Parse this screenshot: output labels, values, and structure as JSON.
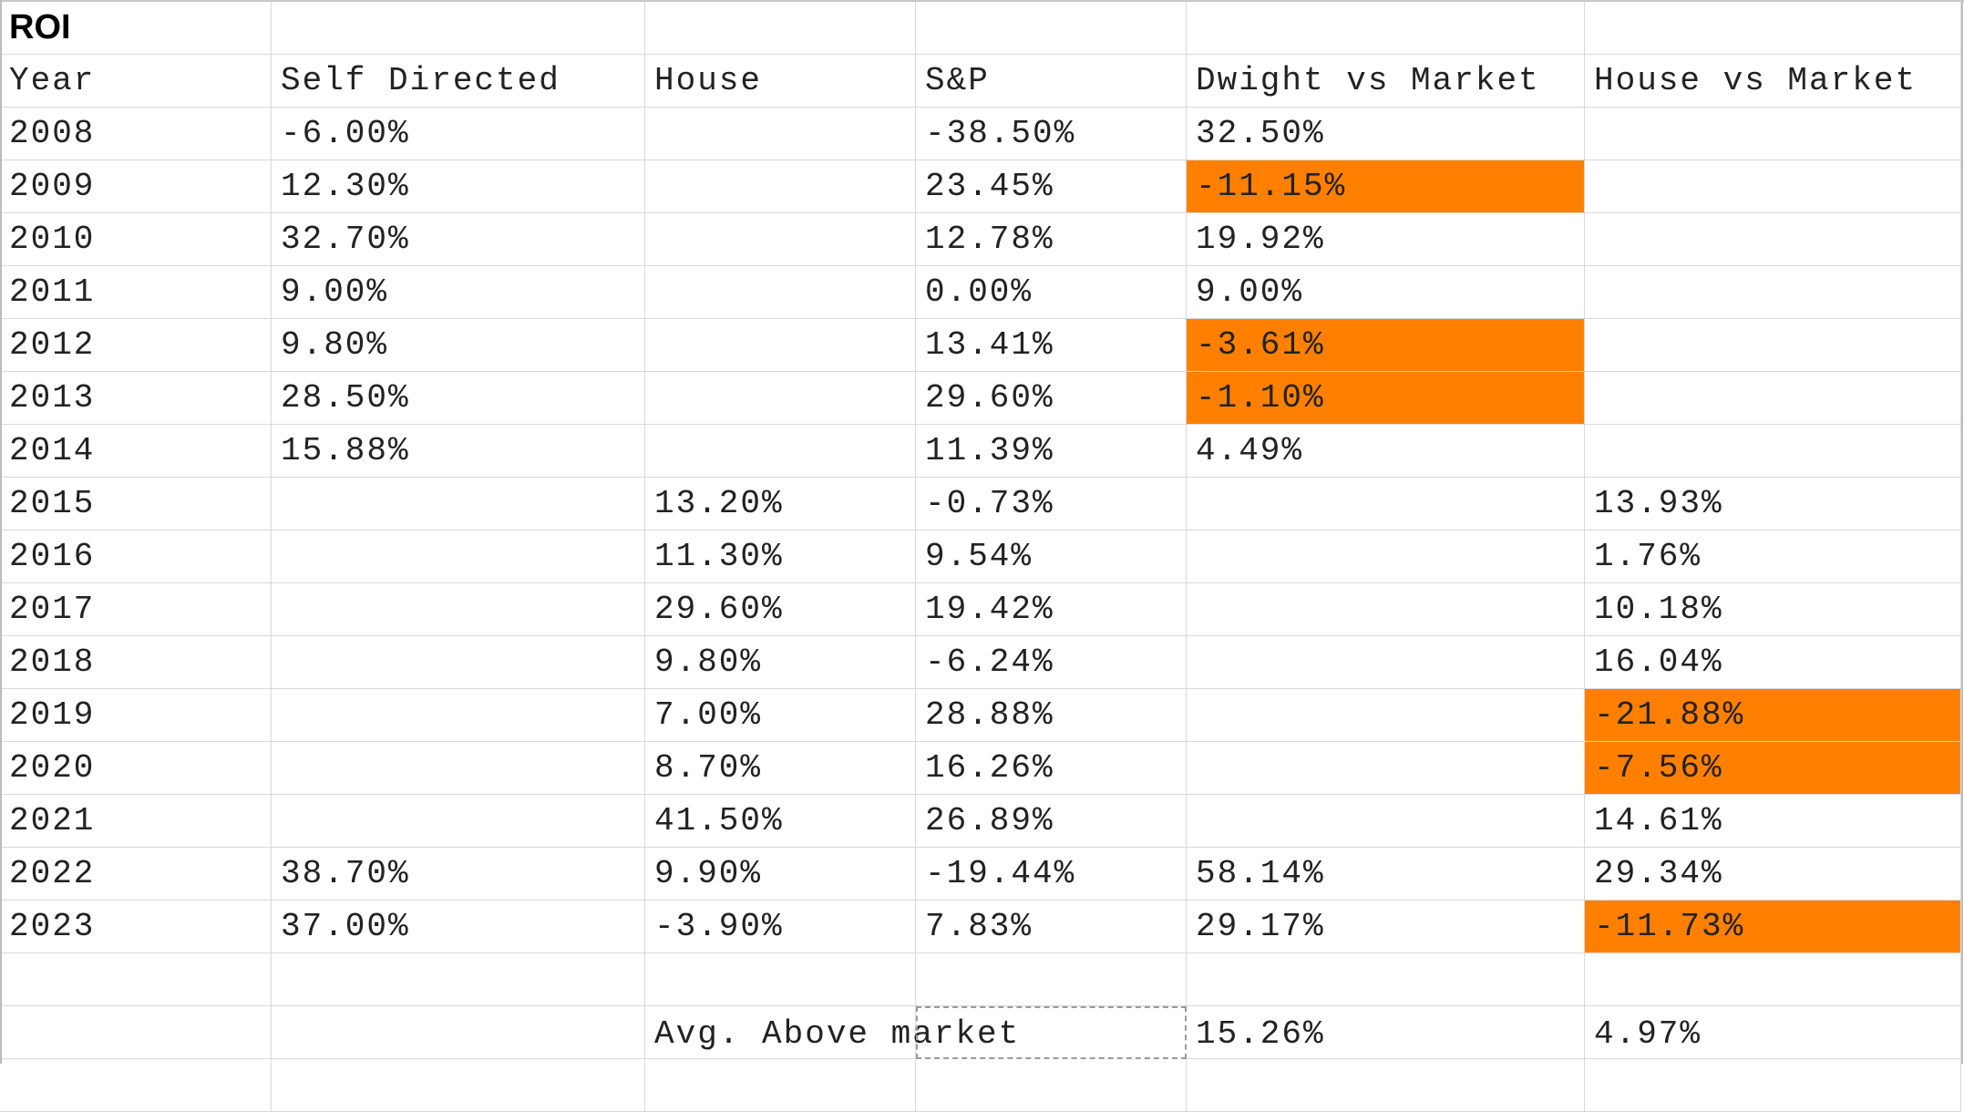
{
  "sheet": {
    "title": "ROI",
    "highlight_color": "#ff8000",
    "headers": [
      "Year",
      "Self Directed",
      "House",
      "S&P",
      "Dwight vs Market",
      "House vs Market"
    ],
    "rows": [
      [
        "2008",
        "-6.00%",
        "",
        "-38.50%",
        "32.50%",
        ""
      ],
      [
        "2009",
        "12.30%",
        "",
        "23.45%",
        "-11.15%",
        ""
      ],
      [
        "2010",
        "32.70%",
        "",
        "12.78%",
        "19.92%",
        ""
      ],
      [
        "2011",
        "9.00%",
        "",
        "0.00%",
        "9.00%",
        ""
      ],
      [
        "2012",
        "9.80%",
        "",
        "13.41%",
        "-3.61%",
        ""
      ],
      [
        "2013",
        "28.50%",
        "",
        "29.60%",
        "-1.10%",
        ""
      ],
      [
        "2014",
        "15.88%",
        "",
        "11.39%",
        "4.49%",
        ""
      ],
      [
        "2015",
        "",
        "13.20%",
        "-0.73%",
        "",
        "13.93%"
      ],
      [
        "2016",
        "",
        "11.30%",
        "9.54%",
        "",
        "1.76%"
      ],
      [
        "2017",
        "",
        "29.60%",
        "19.42%",
        "",
        "10.18%"
      ],
      [
        "2018",
        "",
        "9.80%",
        "-6.24%",
        "",
        "16.04%"
      ],
      [
        "2019",
        "",
        "7.00%",
        "28.88%",
        "",
        "-21.88%"
      ],
      [
        "2020",
        "",
        "8.70%",
        "16.26%",
        "",
        "-7.56%"
      ],
      [
        "2021",
        "",
        "41.50%",
        "26.89%",
        "",
        "14.61%"
      ],
      [
        "2022",
        "38.70%",
        "9.90%",
        "-19.44%",
        "58.14%",
        "29.34%"
      ],
      [
        "2023",
        "37.00%",
        "-3.90%",
        "7.83%",
        "29.17%",
        "-11.73%"
      ]
    ],
    "summary": {
      "label": "Avg. Above market",
      "dwight_avg": "15.26%",
      "house_avg": "4.97%"
    }
  }
}
